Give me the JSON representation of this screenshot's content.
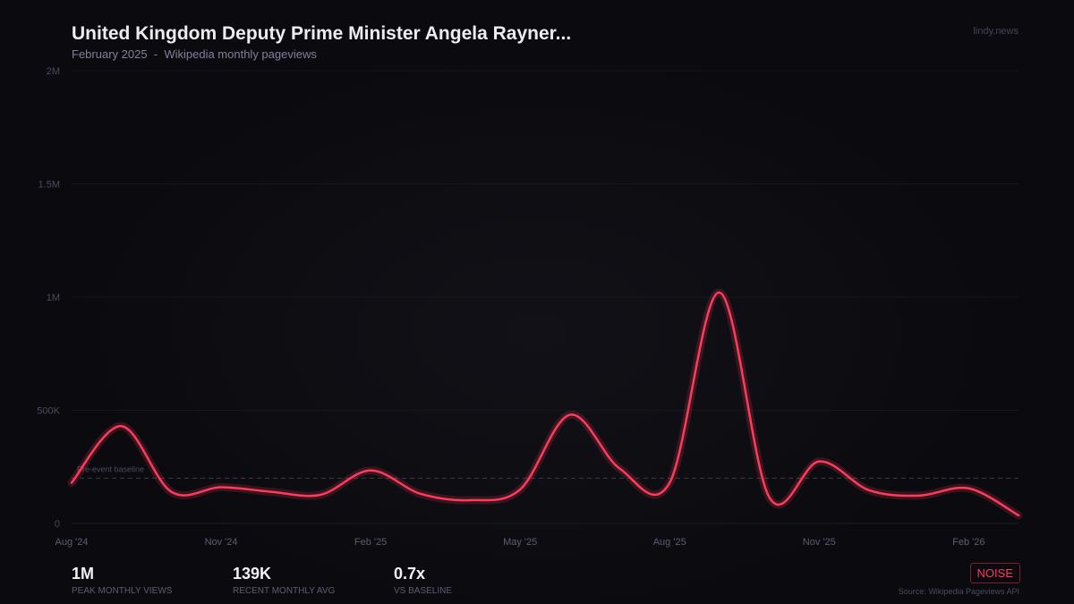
{
  "header": {
    "title": "United Kingdom Deputy Prime Minister Angela Rayner...",
    "subtitle": "February 2025  -  Wikipedia monthly pageviews",
    "brand": "lindy.news"
  },
  "chart_data": {
    "type": "line",
    "x": [
      "2024-08",
      "2024-09",
      "2024-10",
      "2024-11",
      "2024-12",
      "2025-01",
      "2025-02",
      "2025-03",
      "2025-04",
      "2025-05",
      "2025-06",
      "2025-07",
      "2025-08",
      "2025-09",
      "2025-10",
      "2025-11",
      "2025-12",
      "2026-01",
      "2026-02",
      "2026-03"
    ],
    "series": [
      {
        "values": [
          180000,
          430000,
          140000,
          160000,
          140000,
          127000,
          234000,
          131000,
          103000,
          150000,
          480000,
          242000,
          180000,
          1020000,
          115000,
          274000,
          147000,
          123000,
          155000,
          36000
        ],
        "color": "#ff3b5c"
      }
    ],
    "xticks": [
      {
        "at": "2024-08",
        "label": "Aug '24"
      },
      {
        "at": "2024-11",
        "label": "Nov '24"
      },
      {
        "at": "2025-02",
        "label": "Feb '25"
      },
      {
        "at": "2025-05",
        "label": "May '25"
      },
      {
        "at": "2025-08",
        "label": "Aug '25"
      },
      {
        "at": "2025-11",
        "label": "Nov '25"
      },
      {
        "at": "2026-02",
        "label": "Feb '26"
      }
    ],
    "yticks": [
      {
        "v": 0,
        "label": "0"
      },
      {
        "v": 500000,
        "label": "500K"
      },
      {
        "v": 1000000,
        "label": "1M"
      },
      {
        "v": 1500000,
        "label": "1.5M"
      },
      {
        "v": 2000000,
        "label": "2M"
      }
    ],
    "ylim": [
      0,
      2000000
    ],
    "grid": true,
    "baseline": {
      "value": 200000,
      "label": "Pre-event baseline"
    }
  },
  "stats": [
    {
      "value": "1M",
      "label": "PEAK MONTHLY VIEWS"
    },
    {
      "value": "139K",
      "label": "RECENT MONTHLY AVG"
    },
    {
      "value": "0.7x",
      "label": "VS BASELINE"
    }
  ],
  "badge": "NOISE",
  "source": "Source: Wikipedia Pageviews API"
}
